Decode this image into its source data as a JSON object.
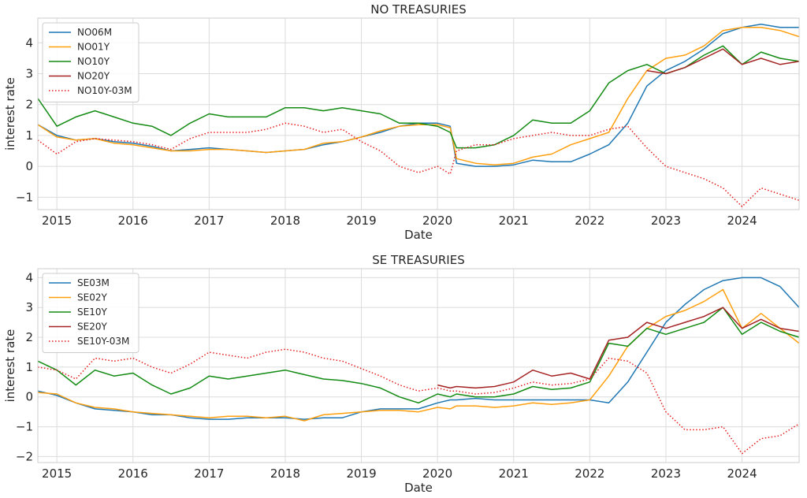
{
  "chart_data": [
    {
      "type": "line",
      "title": "NO TREASURIES",
      "xlabel": "Date",
      "ylabel": "interest rate",
      "x_ticks": [
        "2015",
        "2016",
        "2017",
        "2018",
        "2019",
        "2020",
        "2021",
        "2022",
        "2023",
        "2024"
      ],
      "y_ticks": [
        -1,
        0,
        1,
        2,
        3,
        4
      ],
      "xlim": [
        "2014-10",
        "2024-10"
      ],
      "ylim": [
        -1.4,
        4.8
      ],
      "grid": true,
      "legend_position": "upper-left",
      "x": [
        "2014-10",
        "2015-01",
        "2015-04",
        "2015-07",
        "2015-10",
        "2016-01",
        "2016-04",
        "2016-07",
        "2016-10",
        "2017-01",
        "2017-04",
        "2017-07",
        "2017-10",
        "2018-01",
        "2018-04",
        "2018-07",
        "2018-10",
        "2019-01",
        "2019-04",
        "2019-07",
        "2019-10",
        "2020-01",
        "2020-03",
        "2020-04",
        "2020-07",
        "2020-10",
        "2021-01",
        "2021-04",
        "2021-07",
        "2021-10",
        "2022-01",
        "2022-04",
        "2022-07",
        "2022-10",
        "2023-01",
        "2023-04",
        "2023-07",
        "2023-10",
        "2024-01",
        "2024-04",
        "2024-07",
        "2024-10"
      ],
      "series": [
        {
          "name": "NO06M",
          "color": "#1f77b4",
          "style": "solid",
          "values": [
            1.35,
            1.0,
            0.85,
            0.9,
            0.8,
            0.75,
            0.65,
            0.5,
            0.55,
            0.6,
            0.55,
            0.5,
            0.45,
            0.5,
            0.55,
            0.7,
            0.8,
            0.95,
            1.1,
            1.3,
            1.4,
            1.4,
            1.3,
            0.1,
            0.0,
            0.0,
            0.05,
            0.2,
            0.15,
            0.15,
            0.4,
            0.7,
            1.4,
            2.6,
            3.1,
            3.4,
            3.8,
            4.3,
            4.5,
            4.6,
            4.5,
            4.5
          ]
        },
        {
          "name": "NO01Y",
          "color": "#ff9f0e",
          "style": "solid",
          "values": [
            1.35,
            0.95,
            0.85,
            0.9,
            0.75,
            0.7,
            0.6,
            0.5,
            0.5,
            0.55,
            0.55,
            0.5,
            0.45,
            0.5,
            0.55,
            0.75,
            0.8,
            0.95,
            1.15,
            1.3,
            1.35,
            1.35,
            1.25,
            0.25,
            0.1,
            0.05,
            0.1,
            0.3,
            0.4,
            0.7,
            0.9,
            1.1,
            2.2,
            3.1,
            3.5,
            3.6,
            3.9,
            4.4,
            4.5,
            4.5,
            4.4,
            4.2
          ]
        },
        {
          "name": "NO10Y",
          "color": "#138b13",
          "style": "solid",
          "values": [
            2.2,
            1.3,
            1.6,
            1.8,
            1.6,
            1.4,
            1.3,
            1.0,
            1.4,
            1.7,
            1.6,
            1.6,
            1.6,
            1.9,
            1.9,
            1.8,
            1.9,
            1.8,
            1.7,
            1.4,
            1.4,
            1.3,
            1.1,
            0.6,
            0.6,
            0.7,
            1.0,
            1.5,
            1.4,
            1.4,
            1.8,
            2.7,
            3.1,
            3.3,
            3.0,
            3.2,
            3.6,
            3.9,
            3.3,
            3.7,
            3.5,
            3.4
          ]
        },
        {
          "name": "NO20Y",
          "color": "#a52323",
          "style": "solid",
          "values": [
            null,
            null,
            null,
            null,
            null,
            null,
            null,
            null,
            null,
            null,
            null,
            null,
            null,
            null,
            null,
            null,
            null,
            null,
            null,
            null,
            null,
            null,
            null,
            null,
            null,
            null,
            null,
            null,
            null,
            null,
            null,
            null,
            null,
            3.1,
            3.0,
            3.2,
            3.5,
            3.8,
            3.3,
            3.5,
            3.3,
            3.4
          ]
        },
        {
          "name": "NO10Y-03M",
          "color": "#e61a1a",
          "style": "dotted",
          "values": [
            0.85,
            0.4,
            0.8,
            0.9,
            0.85,
            0.8,
            0.7,
            0.55,
            0.9,
            1.1,
            1.1,
            1.1,
            1.2,
            1.4,
            1.3,
            1.1,
            1.2,
            0.8,
            0.5,
            0.0,
            -0.2,
            0.0,
            -0.25,
            0.5,
            0.7,
            0.7,
            0.9,
            1.0,
            1.1,
            1.0,
            1.0,
            1.2,
            1.3,
            0.6,
            0.0,
            -0.2,
            -0.4,
            -0.7,
            -1.3,
            -0.7,
            -0.9,
            -1.1
          ]
        }
      ]
    },
    {
      "type": "line",
      "title": "SE TREASURIES",
      "xlabel": "Date",
      "ylabel": "interest rate",
      "x_ticks": [
        "2015",
        "2016",
        "2017",
        "2018",
        "2019",
        "2020",
        "2021",
        "2022",
        "2023",
        "2024"
      ],
      "y_ticks": [
        -2,
        -1,
        0,
        1,
        2,
        3,
        4
      ],
      "xlim": [
        "2014-10",
        "2024-10"
      ],
      "ylim": [
        -2.2,
        4.3
      ],
      "grid": true,
      "legend_position": "upper-left",
      "x": [
        "2014-10",
        "2015-01",
        "2015-04",
        "2015-07",
        "2015-10",
        "2016-01",
        "2016-04",
        "2016-07",
        "2016-10",
        "2017-01",
        "2017-04",
        "2017-07",
        "2017-10",
        "2018-01",
        "2018-04",
        "2018-07",
        "2018-10",
        "2019-01",
        "2019-04",
        "2019-07",
        "2019-10",
        "2020-01",
        "2020-03",
        "2020-04",
        "2020-07",
        "2020-10",
        "2021-01",
        "2021-04",
        "2021-07",
        "2021-10",
        "2022-01",
        "2022-04",
        "2022-07",
        "2022-10",
        "2023-01",
        "2023-04",
        "2023-07",
        "2023-10",
        "2024-01",
        "2024-04",
        "2024-07",
        "2024-10"
      ],
      "series": [
        {
          "name": "SE03M",
          "color": "#1f77b4",
          "style": "solid",
          "values": [
            0.2,
            0.05,
            -0.2,
            -0.4,
            -0.45,
            -0.5,
            -0.6,
            -0.6,
            -0.7,
            -0.75,
            -0.75,
            -0.7,
            -0.7,
            -0.7,
            -0.75,
            -0.7,
            -0.7,
            -0.5,
            -0.4,
            -0.4,
            -0.4,
            -0.2,
            -0.1,
            -0.1,
            -0.05,
            -0.1,
            -0.1,
            -0.1,
            -0.1,
            -0.1,
            -0.1,
            -0.2,
            0.5,
            1.5,
            2.5,
            3.1,
            3.6,
            3.9,
            4.0,
            4.0,
            3.7,
            3.0
          ]
        },
        {
          "name": "SE02Y",
          "color": "#ff9f0e",
          "style": "solid",
          "values": [
            0.15,
            0.1,
            -0.2,
            -0.35,
            -0.4,
            -0.5,
            -0.55,
            -0.6,
            -0.65,
            -0.7,
            -0.65,
            -0.65,
            -0.7,
            -0.65,
            -0.8,
            -0.6,
            -0.55,
            -0.5,
            -0.45,
            -0.45,
            -0.5,
            -0.35,
            -0.4,
            -0.3,
            -0.3,
            -0.35,
            -0.3,
            -0.2,
            -0.25,
            -0.2,
            -0.1,
            0.7,
            1.7,
            2.3,
            2.7,
            2.9,
            3.2,
            3.6,
            2.3,
            2.8,
            2.3,
            1.8
          ]
        },
        {
          "name": "SE10Y",
          "color": "#138b13",
          "style": "solid",
          "values": [
            1.2,
            0.9,
            0.4,
            0.9,
            0.7,
            0.8,
            0.4,
            0.1,
            0.3,
            0.7,
            0.6,
            0.7,
            0.8,
            0.9,
            0.75,
            0.6,
            0.55,
            0.45,
            0.3,
            0.0,
            -0.2,
            0.1,
            0.0,
            0.1,
            0.0,
            0.0,
            0.1,
            0.35,
            0.25,
            0.3,
            0.5,
            1.8,
            1.7,
            2.3,
            2.1,
            2.3,
            2.5,
            3.0,
            2.1,
            2.5,
            2.2,
            2.0
          ]
        },
        {
          "name": "SE20Y",
          "color": "#a52323",
          "style": "solid",
          "values": [
            null,
            null,
            null,
            null,
            null,
            null,
            null,
            null,
            null,
            null,
            null,
            null,
            null,
            null,
            null,
            null,
            null,
            null,
            null,
            null,
            null,
            0.4,
            0.3,
            0.35,
            0.3,
            0.35,
            0.5,
            0.9,
            0.7,
            0.8,
            0.6,
            1.9,
            2.0,
            2.5,
            2.3,
            2.5,
            2.7,
            3.0,
            2.3,
            2.6,
            2.3,
            2.2
          ]
        },
        {
          "name": "SE10Y-03M",
          "color": "#e61a1a",
          "style": "dotted",
          "values": [
            1.0,
            0.9,
            0.6,
            1.3,
            1.2,
            1.3,
            1.0,
            0.8,
            1.1,
            1.5,
            1.4,
            1.3,
            1.5,
            1.6,
            1.5,
            1.3,
            1.2,
            0.95,
            0.7,
            0.4,
            0.2,
            0.3,
            0.2,
            0.2,
            0.1,
            0.15,
            0.3,
            0.5,
            0.4,
            0.45,
            0.6,
            1.3,
            1.2,
            0.8,
            -0.5,
            -1.1,
            -1.1,
            -1.0,
            -1.9,
            -1.4,
            -1.3,
            -0.9
          ]
        }
      ]
    }
  ]
}
